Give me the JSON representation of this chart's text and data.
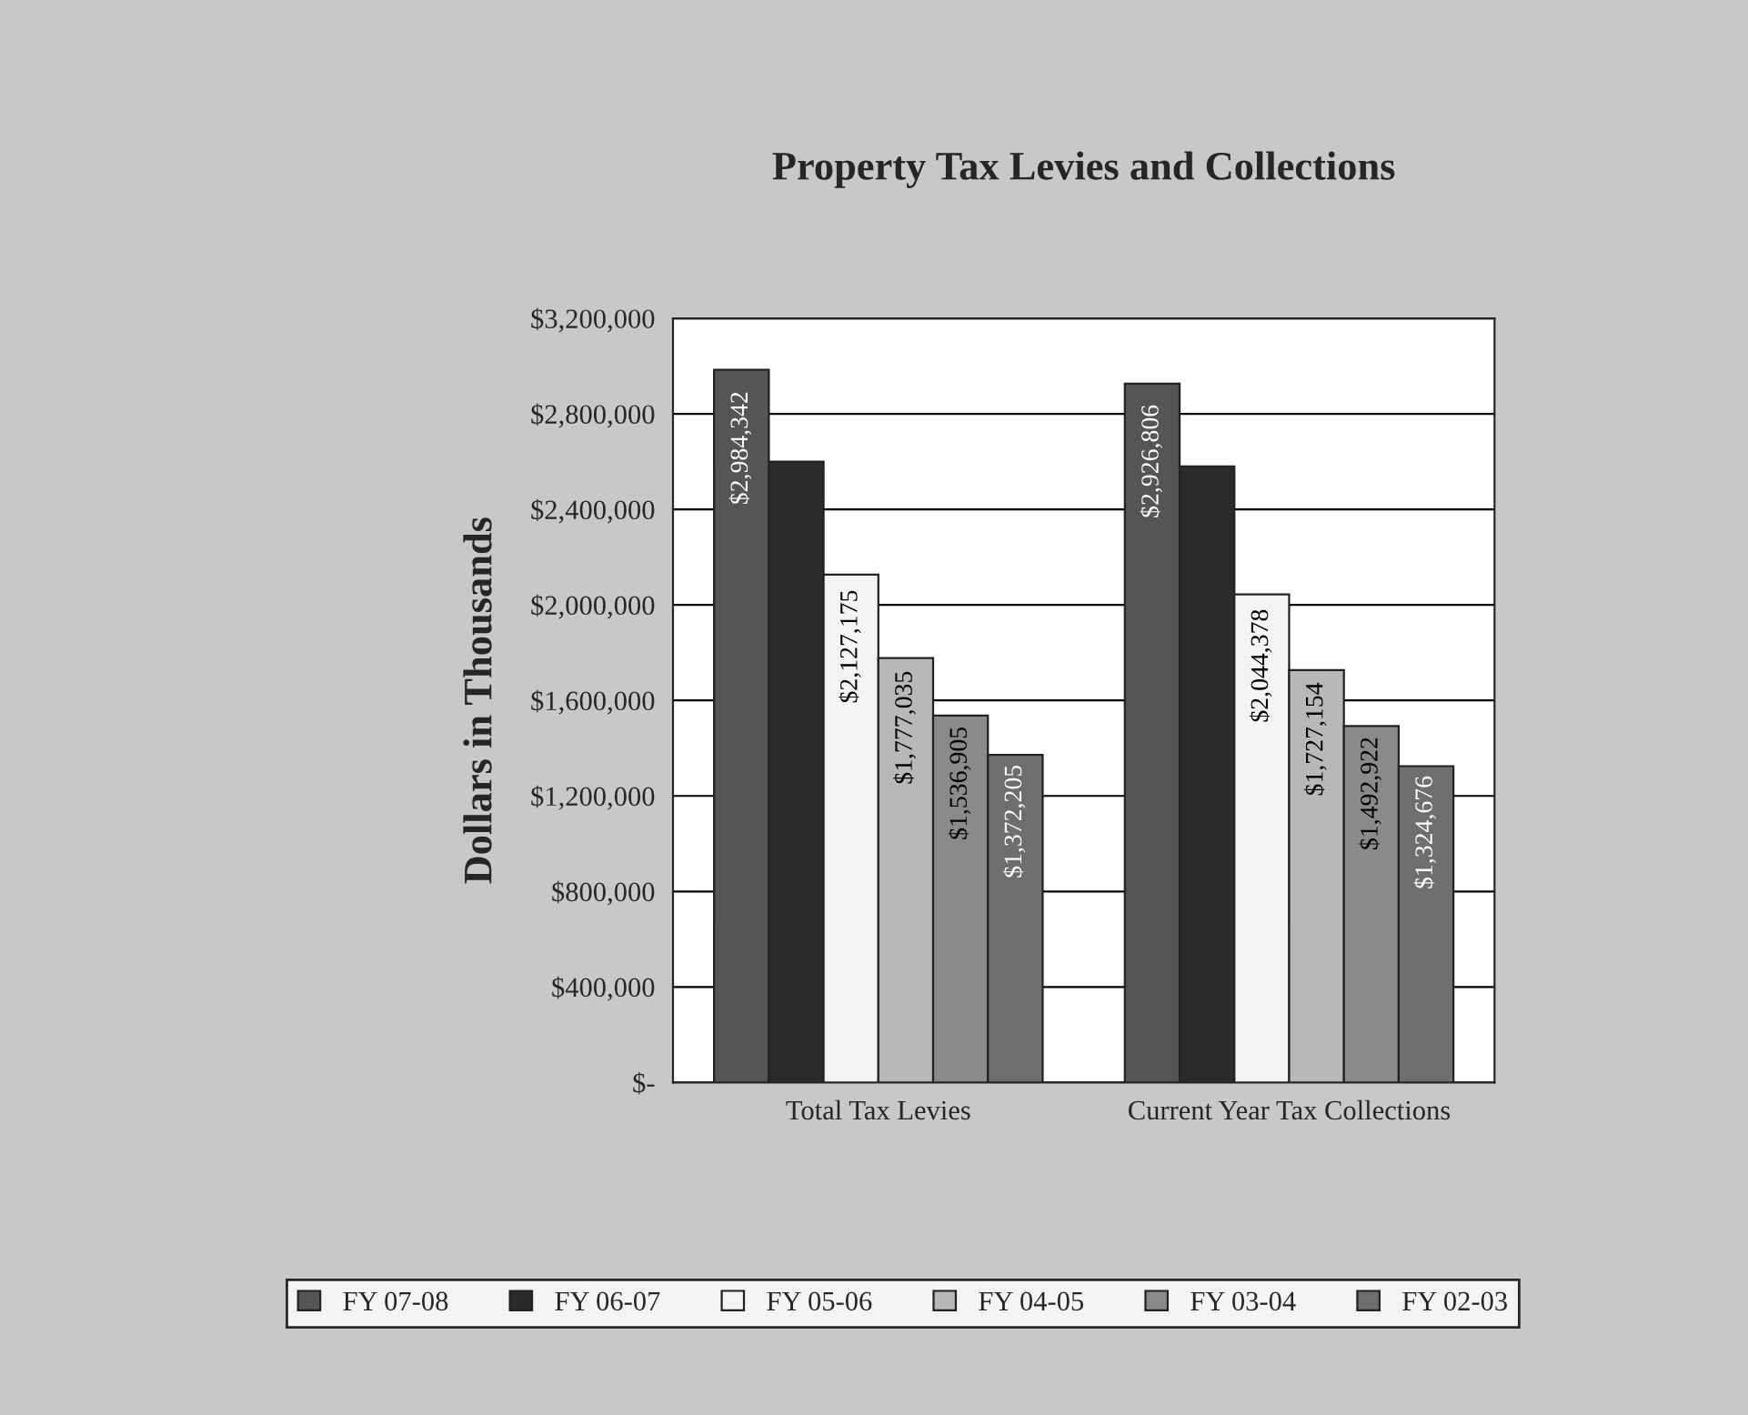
{
  "chart_data": {
    "type": "bar",
    "title": "Property Tax Levies and Collections",
    "ylabel": "Dollars in Thousands",
    "categories": [
      "Total Tax Levies",
      "Current Year Tax Collections"
    ],
    "series": [
      {
        "name": "FY 07-08",
        "color": "#555555",
        "values": [
          2984342,
          2926806
        ],
        "value_labels": [
          "$2,984,342",
          "$2,926,806"
        ]
      },
      {
        "name": "FY 06-07",
        "color": "#2a2a2a",
        "values": [
          2600000,
          2580000
        ],
        "value_labels": [
          null,
          null
        ]
      },
      {
        "name": "FY 05-06",
        "color": "#f4f4f4",
        "values": [
          2127175,
          2044378
        ],
        "value_labels": [
          "$2,127,175",
          "$2,044,378"
        ]
      },
      {
        "name": "FY 04-05",
        "color": "#b8b8b8",
        "values": [
          1777035,
          1727154
        ],
        "value_labels": [
          "$1,777,035",
          "$1,727,154"
        ]
      },
      {
        "name": "FY 03-04",
        "color": "#8a8a8a",
        "values": [
          1536905,
          1492922
        ],
        "value_labels": [
          "$1,536,905",
          "$1,492,922"
        ]
      },
      {
        "name": "FY 02-03",
        "color": "#6e6e6e",
        "values": [
          1372205,
          1324676
        ],
        "value_labels": [
          "$1,372,205",
          "$1,324,676"
        ]
      }
    ],
    "ylim": [
      0,
      3200000
    ],
    "yticks": [
      {
        "value": 0,
        "label": "$-"
      },
      {
        "value": 400000,
        "label": "$400,000"
      },
      {
        "value": 800000,
        "label": "$800,000"
      },
      {
        "value": 1200000,
        "label": "$1,200,000"
      },
      {
        "value": 1600000,
        "label": "$1,600,000"
      },
      {
        "value": 2000000,
        "label": "$2,000,000"
      },
      {
        "value": 2400000,
        "label": "$2,400,000"
      },
      {
        "value": 2800000,
        "label": "$2,800,000"
      },
      {
        "value": 3200000,
        "label": "$3,200,000"
      }
    ],
    "grid": "y",
    "legend": "bottom"
  }
}
